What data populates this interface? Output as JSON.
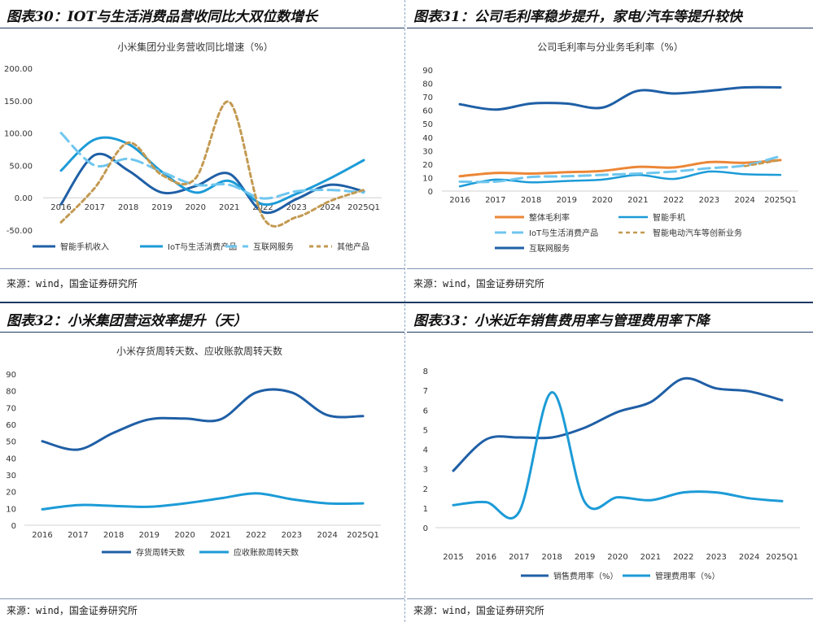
{
  "colors": {
    "dark": "#1f5fa6",
    "mid": "#1c9bd7",
    "light": "#6fc6ee",
    "gold": "#c39a52",
    "orange": "#ec8636",
    "title": "#1f3864"
  },
  "source_text": "来源：wind，国金证券研究所",
  "chart_data": [
    {
      "type": "line",
      "panel_title": "图表30：IOT与生活消费品营收同比大双位数增长",
      "title": "小米集团分业务营收同比增速（%）",
      "categories": [
        "2016",
        "2017",
        "2018",
        "2019",
        "2020",
        "2021",
        "2022",
        "2023",
        "2024",
        "2025Q1"
      ],
      "ylim": [
        -50,
        200
      ],
      "yticks": [
        "200.00",
        "150.00",
        "100.00",
        "50.00",
        "0.00",
        "-50.00"
      ],
      "ytick_values": [
        200,
        150,
        100,
        50,
        0,
        -50
      ],
      "series": [
        {
          "name": "智能手机收入",
          "values": [
            -10,
            66,
            42,
            8,
            18,
            37,
            -22,
            -2,
            20,
            10
          ]
        },
        {
          "name": "IoT与生活消费产品",
          "values": [
            42,
            90,
            83,
            40,
            8,
            26,
            -10,
            6,
            30,
            58
          ]
        },
        {
          "name": "互联网服务",
          "values": [
            100,
            50,
            60,
            40,
            20,
            20,
            -1,
            10,
            12,
            8
          ]
        },
        {
          "name": "其他产品",
          "values": [
            -38,
            15,
            85,
            35,
            30,
            148,
            -30,
            -30,
            -5,
            12
          ]
        }
      ]
    },
    {
      "type": "line",
      "panel_title": "图表31：公司毛利率稳步提升，家电/汽车等提升较快",
      "title": "公司毛利率与分业务毛利率（%）",
      "categories": [
        "2016",
        "2017",
        "2018",
        "2019",
        "2020",
        "2021",
        "2022",
        "2023",
        "2024",
        "2025Q1"
      ],
      "ylim": [
        0,
        90
      ],
      "yticks": [
        "90",
        "80",
        "70",
        "60",
        "50",
        "40",
        "30",
        "20",
        "10",
        "0"
      ],
      "ytick_values": [
        90,
        80,
        70,
        60,
        50,
        40,
        30,
        20,
        10,
        0
      ],
      "series": [
        {
          "name": "整体毛利率",
          "values": [
            11,
            13.5,
            13,
            14,
            15,
            18,
            17.5,
            21.5,
            21,
            23
          ]
        },
        {
          "name": "智能手机",
          "values": [
            3.5,
            8.5,
            6.5,
            7.5,
            8.5,
            12,
            9,
            14.5,
            12.5,
            12
          ]
        },
        {
          "name": "IoT与生活消费产品",
          "values": [
            7,
            7,
            10.5,
            11,
            12,
            13,
            14.5,
            17,
            19,
            26
          ]
        },
        {
          "name": "智能电动汽车等创新业务",
          "values": [
            null,
            null,
            null,
            null,
            null,
            null,
            null,
            null,
            18.5,
            23
          ]
        },
        {
          "name": "互联网服务",
          "values": [
            64.5,
            60.5,
            65,
            65,
            62,
            74.5,
            72.5,
            74.5,
            77,
            77
          ]
        }
      ]
    },
    {
      "type": "line",
      "panel_title": "图表32：小米集团营运效率提升（天）",
      "title": "小米存货周转天数、应收账款周转天数",
      "categories": [
        "2016",
        "2017",
        "2018",
        "2019",
        "2020",
        "2021",
        "2022",
        "2023",
        "2024",
        "2025Q1"
      ],
      "ylim": [
        0,
        90
      ],
      "yticks": [
        "90",
        "80",
        "70",
        "60",
        "50",
        "40",
        "30",
        "20",
        "10",
        "0"
      ],
      "ytick_values": [
        90,
        80,
        70,
        60,
        50,
        40,
        30,
        20,
        10,
        0
      ],
      "series": [
        {
          "name": "存货周转天数",
          "values": [
            50,
            45,
            55,
            63,
            63.5,
            63,
            79,
            79,
            65.5,
            65
          ]
        },
        {
          "name": "应收账款周转天数",
          "values": [
            9.5,
            12,
            11.5,
            11,
            13,
            16,
            19,
            15.5,
            13,
            13
          ]
        }
      ]
    },
    {
      "type": "line",
      "panel_title": "图表33：小米近年销售费用率与管理费用率下降",
      "title": "",
      "categories": [
        "2015",
        "2016",
        "2017",
        "2018",
        "2019",
        "2020",
        "2021",
        "2022",
        "2023",
        "2024",
        "2025Q1"
      ],
      "ylim": [
        0,
        8
      ],
      "yticks": [
        "8",
        "7",
        "6",
        "5",
        "4",
        "3",
        "2",
        "1",
        "0"
      ],
      "ytick_values": [
        8,
        7,
        6,
        5,
        4,
        3,
        2,
        1,
        0
      ],
      "series": [
        {
          "name": "销售费用率（%）",
          "values": [
            2.9,
            4.5,
            4.6,
            4.6,
            5.1,
            5.9,
            6.4,
            7.6,
            7.1,
            6.95,
            6.5
          ]
        },
        {
          "name": "管理费用率（%）",
          "values": [
            1.15,
            1.3,
            0.8,
            6.9,
            1.3,
            1.55,
            1.4,
            1.8,
            1.8,
            1.5,
            1.35
          ]
        }
      ]
    }
  ]
}
